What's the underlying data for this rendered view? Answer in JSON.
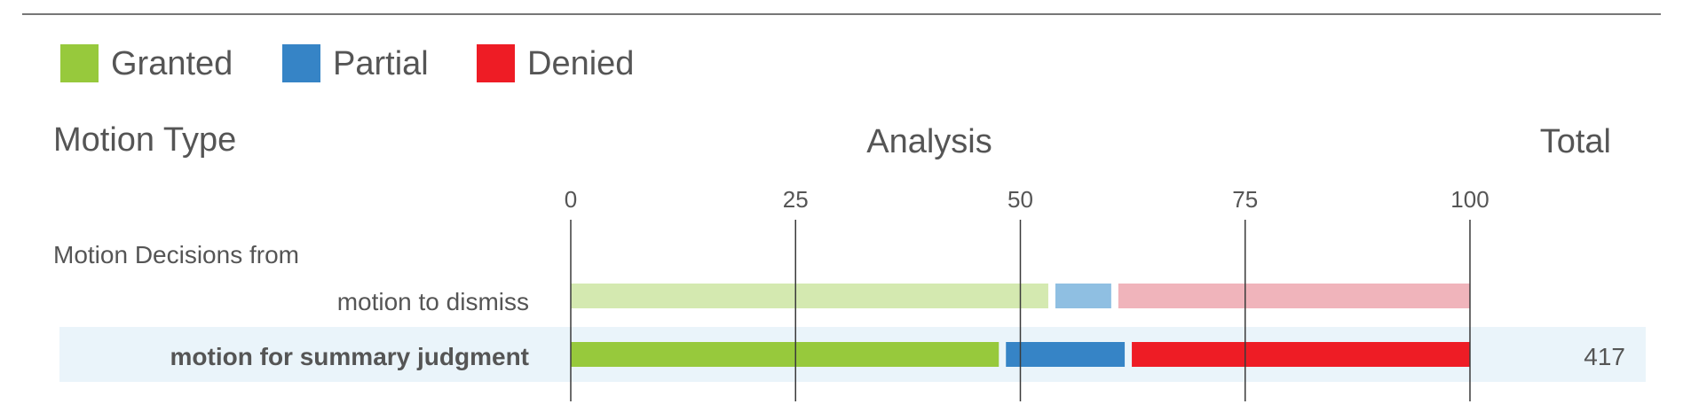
{
  "chart_data": {
    "type": "bar",
    "stacked": true,
    "orientation": "horizontal",
    "legend_position": "top-left",
    "legend": [
      {
        "name": "Granted",
        "color": "#97c93c"
      },
      {
        "name": "Partial",
        "color": "#3684c6"
      },
      {
        "name": "Denied",
        "color": "#ee1c25"
      }
    ],
    "headers": {
      "category": "Motion Type",
      "analysis": "Analysis",
      "total": "Total"
    },
    "xlim": [
      0,
      100
    ],
    "x_ticks": [
      "0",
      "25",
      "50",
      "75",
      "100"
    ],
    "grid": true,
    "group_label": "Motion Decisions from",
    "rows": [
      {
        "label": "motion to dismiss",
        "highlighted": false,
        "total": "",
        "values": [
          53.5,
          7,
          39.5
        ],
        "colors": [
          "#d4e9b0",
          "#8fbfe2",
          "#f0b4bb"
        ]
      },
      {
        "label": "motion for summary judgment",
        "highlighted": true,
        "total": "417",
        "values": [
          48,
          14,
          38
        ],
        "colors": [
          "#97c93c",
          "#3684c6",
          "#ee1c25"
        ]
      }
    ]
  }
}
